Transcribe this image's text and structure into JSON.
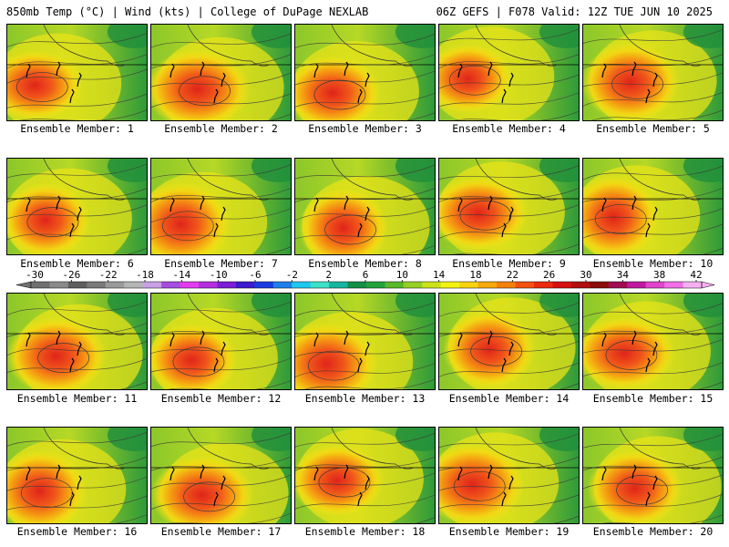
{
  "header": {
    "left_title": "850mb Temp (°C) | Wind (kts) | College of DuPage NEXLAB",
    "right_title": "06Z GEFS | F078 Valid: 12Z TUE JUN 10 2025"
  },
  "panel_label_prefix": "Ensemble Member: ",
  "members": [
    {
      "id": 1,
      "label": "Ensemble Member: 1"
    },
    {
      "id": 2,
      "label": "Ensemble Member: 2"
    },
    {
      "id": 3,
      "label": "Ensemble Member: 3"
    },
    {
      "id": 4,
      "label": "Ensemble Member: 4"
    },
    {
      "id": 5,
      "label": "Ensemble Member: 5"
    },
    {
      "id": 6,
      "label": "Ensemble Member: 6"
    },
    {
      "id": 7,
      "label": "Ensemble Member: 7"
    },
    {
      "id": 8,
      "label": "Ensemble Member: 8"
    },
    {
      "id": 9,
      "label": "Ensemble Member: 9"
    },
    {
      "id": 10,
      "label": "Ensemble Member: 10"
    },
    {
      "id": 11,
      "label": "Ensemble Member: 11"
    },
    {
      "id": 12,
      "label": "Ensemble Member: 12"
    },
    {
      "id": 13,
      "label": "Ensemble Member: 13"
    },
    {
      "id": 14,
      "label": "Ensemble Member: 14"
    },
    {
      "id": 15,
      "label": "Ensemble Member: 15"
    },
    {
      "id": 16,
      "label": "Ensemble Member: 16"
    },
    {
      "id": 17,
      "label": "Ensemble Member: 17"
    },
    {
      "id": 18,
      "label": "Ensemble Member: 18"
    },
    {
      "id": 19,
      "label": "Ensemble Member: 19"
    },
    {
      "id": 20,
      "label": "Ensemble Member: 20"
    }
  ],
  "colorbar": {
    "tick_labels": [
      "-30",
      "-26",
      "-22",
      "-18",
      "-14",
      "-10",
      "-6",
      "-2",
      "2",
      "6",
      "10",
      "14",
      "18",
      "22",
      "26",
      "30",
      "34",
      "38",
      "42"
    ],
    "colors": [
      "#707070",
      "#8a8a8a",
      "#5e5e5e",
      "#7a7a7a",
      "#9a9a9a",
      "#b5b5b5",
      "#c8a0e6",
      "#a64ce0",
      "#e23cf0",
      "#b42ee0",
      "#7c1fd6",
      "#3c1ccc",
      "#1c3ae0",
      "#1f7fe8",
      "#1fc7ee",
      "#3de0c8",
      "#18b4a0",
      "#138f46",
      "#21a23c",
      "#58b82a",
      "#96cf26",
      "#cbe21a",
      "#f3f312",
      "#f6d30e",
      "#f6a80c",
      "#f4800c",
      "#f2510f",
      "#ec2a10",
      "#d41010",
      "#b01010",
      "#8c0c0c",
      "#a00c54",
      "#c01a9c",
      "#e044cc",
      "#f070e6",
      "#f6b0f2"
    ],
    "unit": "°C"
  },
  "map_legend": {
    "field": "850mb temperature",
    "contours": "850mb height lines",
    "wind": "wind barbs (kts)"
  }
}
